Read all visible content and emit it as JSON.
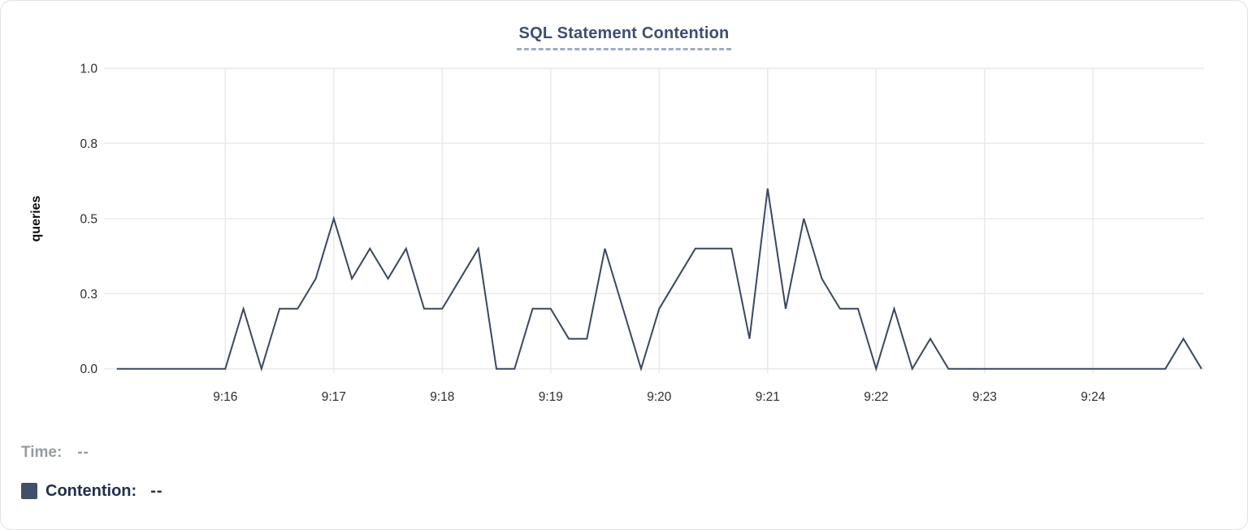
{
  "card": {
    "title": "SQL Statement Contention"
  },
  "colors": {
    "background": "#ffffff",
    "card_border": "#e2e2e2",
    "line": "#3b4862",
    "grid": "#e9e9e9",
    "tick_text": "#2e2e2e",
    "axis_label_text": "#0d0d0d",
    "title_text": "#3e4e72",
    "title_underline": "#a2aacb",
    "legend_time_text": "#969ba5",
    "legend_contention_text": "#22304f",
    "swatch": "#424f69"
  },
  "chart_data": {
    "type": "line",
    "title": "SQL Statement Contention",
    "xlabel": "",
    "ylabel": "queries",
    "ylim": [
      0,
      1
    ],
    "grid": true,
    "legend_position": "bottom-left",
    "yticks": [
      {
        "value": 0,
        "label": "0.0"
      },
      {
        "value": 0.25,
        "label": "0.3"
      },
      {
        "value": 0.5,
        "label": "0.5"
      },
      {
        "value": 0.75,
        "label": "0.8"
      },
      {
        "value": 1,
        "label": "1.0"
      }
    ],
    "xtick_labels": [
      "9:16",
      "9:17",
      "9:18",
      "9:19",
      "9:20",
      "9:21",
      "9:22",
      "9:23",
      "9:24"
    ],
    "x_start": "9:15:00",
    "x_end": "9:25:00",
    "interval_seconds": 10,
    "series": [
      {
        "name": "Contention",
        "values": [
          0,
          0,
          0,
          0,
          0,
          0,
          0,
          0.2,
          0,
          0.2,
          0.2,
          0.3,
          0.5,
          0.3,
          0.4,
          0.3,
          0.4,
          0.2,
          0.2,
          0.3,
          0.4,
          0,
          0,
          0.2,
          0.2,
          0.1,
          0.1,
          0.4,
          0.2,
          0,
          0.2,
          0.3,
          0.4,
          0.4,
          0.4,
          0.1,
          0.6,
          0.2,
          0.5,
          0.3,
          0.2,
          0.2,
          0,
          0.2,
          0,
          0.1,
          0,
          0,
          0,
          0,
          0,
          0,
          0,
          0,
          0,
          0,
          0,
          0,
          0,
          0.1,
          0
        ]
      }
    ]
  },
  "tooltip_legend": {
    "time_label": "Time:",
    "time_value": "--",
    "series_label": "Contention:",
    "series_value": "--"
  }
}
